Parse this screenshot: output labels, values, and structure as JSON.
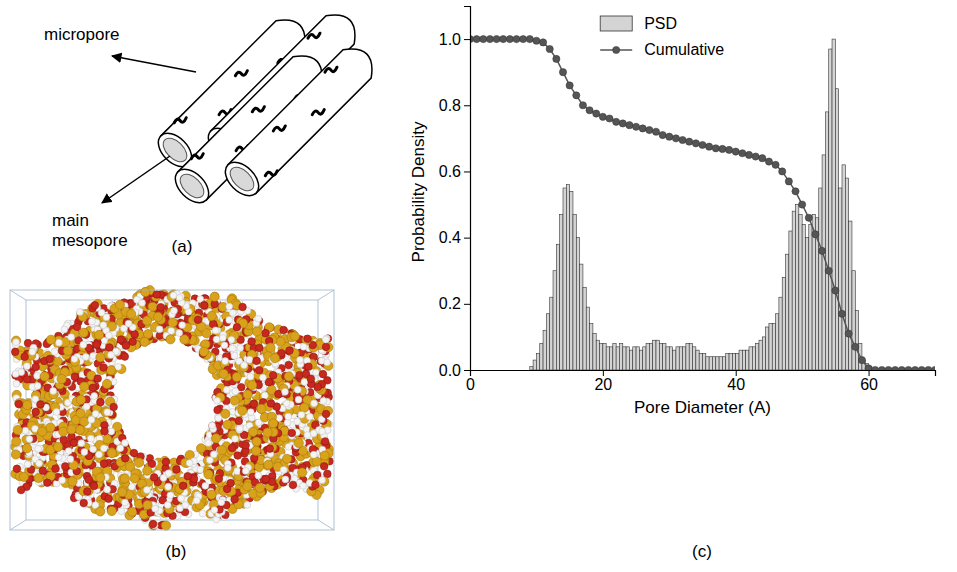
{
  "diagram": {
    "panel_label": "(a)",
    "labels": [
      "micropore",
      "main mesopore"
    ]
  },
  "rendering": {
    "panel_label": "(b)"
  },
  "chart_data": {
    "type": "histogram",
    "panel_label": "(c)",
    "xlabel": "Pore Diameter (A)",
    "ylabel": "Probability Density",
    "xlim": [
      0,
      70
    ],
    "ylim": [
      0,
      1.1
    ],
    "xticks": [
      0,
      20,
      40,
      60
    ],
    "yticks": [
      {
        "value": 0,
        "label": "0.0"
      },
      0.2,
      0.4,
      0.6,
      0.8,
      {
        "value": 1,
        "label": "1.0"
      }
    ],
    "grid": false,
    "legend": "top",
    "series": [
      {
        "name": "PSD",
        "type": "histogram",
        "color": "#d4d4d4",
        "bins": [
          9,
          9.5,
          10,
          10.5,
          11,
          11.5,
          12,
          12.5,
          13,
          13.5,
          14,
          14.5,
          15,
          15.5,
          16,
          16.5,
          17,
          17.5,
          18,
          18.5,
          19,
          19.5,
          20,
          20.5,
          21,
          21.5,
          22,
          22.5,
          23,
          23.5,
          24,
          24.5,
          25,
          25.5,
          26,
          26.5,
          27,
          27.5,
          28,
          28.5,
          29,
          29.5,
          30,
          30.5,
          31,
          31.5,
          32,
          32.5,
          33,
          33.5,
          34,
          34.5,
          35,
          35.5,
          36,
          36.5,
          37,
          37.5,
          38,
          38.5,
          39,
          39.5,
          40,
          40.5,
          41,
          41.5,
          42,
          42.5,
          43,
          43.5,
          44,
          44.5,
          45,
          45.5,
          46,
          46.5,
          47,
          47.5,
          48,
          48.5,
          49,
          49.5,
          50,
          50.5,
          51,
          51.5,
          52,
          52.5,
          53,
          53.5,
          54,
          54.5,
          55,
          55.5,
          56,
          56.5,
          57,
          57.5,
          58,
          58.5,
          59,
          59.5,
          60,
          60.5
        ],
        "values": [
          0.01,
          0.03,
          0.05,
          0.08,
          0.12,
          0.17,
          0.22,
          0.3,
          0.38,
          0.47,
          0.55,
          0.56,
          0.54,
          0.47,
          0.4,
          0.32,
          0.25,
          0.19,
          0.14,
          0.11,
          0.09,
          0.08,
          0.08,
          0.07,
          0.07,
          0.08,
          0.07,
          0.08,
          0.07,
          0.07,
          0.06,
          0.07,
          0.07,
          0.06,
          0.07,
          0.08,
          0.08,
          0.09,
          0.09,
          0.08,
          0.08,
          0.07,
          0.07,
          0.06,
          0.07,
          0.07,
          0.07,
          0.08,
          0.08,
          0.07,
          0.06,
          0.05,
          0.05,
          0.04,
          0.04,
          0.04,
          0.04,
          0.04,
          0.04,
          0.05,
          0.05,
          0.05,
          0.05,
          0.06,
          0.06,
          0.06,
          0.07,
          0.07,
          0.08,
          0.09,
          0.1,
          0.13,
          0.14,
          0.14,
          0.17,
          0.22,
          0.28,
          0.35,
          0.42,
          0.48,
          0.5,
          0.47,
          0.44,
          0.4,
          0.44,
          0.47,
          0.46,
          0.55,
          0.65,
          0.78,
          0.97,
          1.0,
          0.85,
          0.55,
          0.62,
          0.58,
          0.45,
          0.3,
          0.18,
          0.08,
          0.03,
          0.02,
          0.01
        ]
      },
      {
        "name": "Cumulative",
        "type": "line",
        "color": "#555555",
        "marker": "circle",
        "line_style": "solid",
        "x": [
          0,
          1,
          2,
          3,
          4,
          5,
          6,
          7,
          8,
          9,
          10,
          11,
          12,
          13,
          14,
          15,
          16,
          17,
          18,
          19,
          20,
          21,
          22,
          23,
          24,
          25,
          26,
          27,
          28,
          29,
          30,
          31,
          32,
          33,
          34,
          35,
          36,
          37,
          38,
          39,
          40,
          41,
          42,
          43,
          44,
          45,
          46,
          47,
          48,
          49,
          50,
          51,
          52,
          53,
          54,
          55,
          56,
          57,
          58,
          59,
          60,
          61,
          62,
          63,
          64,
          65,
          66,
          67,
          68,
          69,
          70
        ],
        "values": [
          1,
          1,
          1,
          1,
          1,
          1,
          1,
          1,
          1,
          1,
          0.995,
          0.99,
          0.97,
          0.94,
          0.9,
          0.86,
          0.83,
          0.8,
          0.785,
          0.775,
          0.765,
          0.76,
          0.75,
          0.745,
          0.74,
          0.735,
          0.73,
          0.725,
          0.72,
          0.71,
          0.705,
          0.7,
          0.695,
          0.69,
          0.685,
          0.68,
          0.675,
          0.67,
          0.668,
          0.665,
          0.66,
          0.655,
          0.65,
          0.645,
          0.64,
          0.63,
          0.62,
          0.6,
          0.57,
          0.54,
          0.5,
          0.46,
          0.41,
          0.36,
          0.3,
          0.24,
          0.17,
          0.11,
          0.07,
          0.03,
          0.005,
          0,
          0,
          0,
          0,
          0,
          0,
          0,
          0,
          0,
          0
        ]
      }
    ]
  }
}
